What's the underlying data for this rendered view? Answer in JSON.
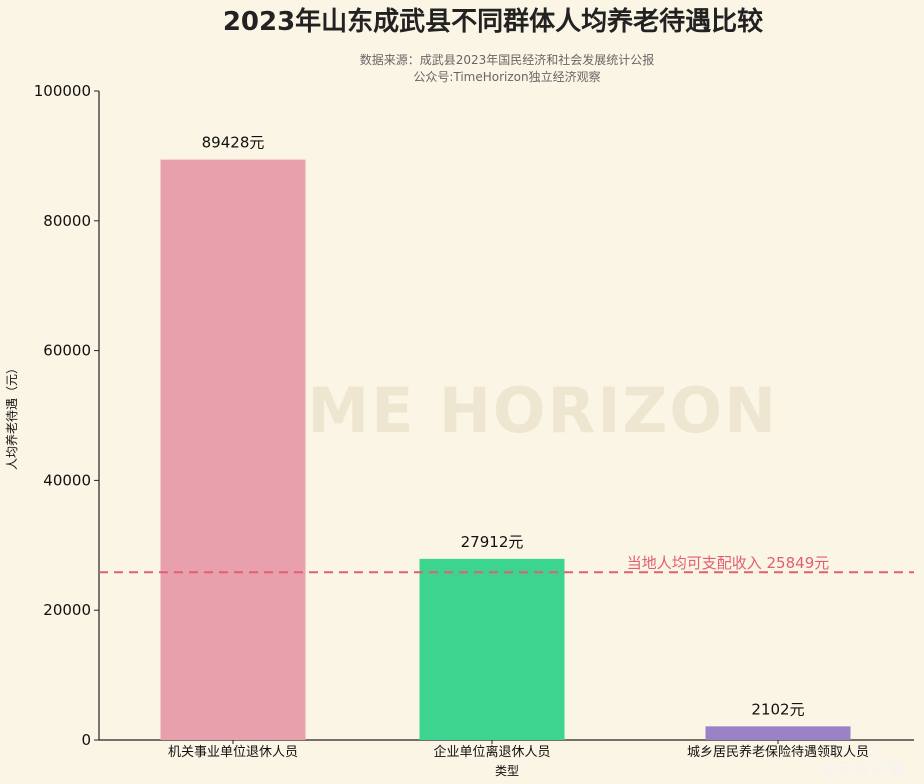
{
  "chart_data": {
    "type": "bar",
    "title": "2023年山东成武县不同群体人均养老待遇比较",
    "subtitle_lines": [
      "数据来源：成武县2023年国民经济和社会发展统计公报",
      "公众号:TimeHorizon独立经济观察"
    ],
    "categories": [
      "机关事业单位退休人员",
      "企业单位离退休人员",
      "城乡居民养老保险待遇领取人员"
    ],
    "values": [
      89428,
      27912,
      2102
    ],
    "data_labels": [
      "89428元",
      "27912元",
      "2102元"
    ],
    "bar_colors": [
      "#e8a0ad",
      "#3dd48f",
      "#9b82c6"
    ],
    "xlabel": "类型",
    "ylabel": "人均养老待遇（元）",
    "ylim": [
      0,
      100000
    ],
    "yticks": [
      0,
      20000,
      40000,
      60000,
      80000,
      100000
    ],
    "grid": false,
    "reference_line": {
      "value": 25849,
      "label": "当地人均可支配收入 25849元",
      "color": "#e06070",
      "style": "dashed"
    }
  },
  "watermark": "TIME HORIZON",
  "credit": "@云乡访客"
}
